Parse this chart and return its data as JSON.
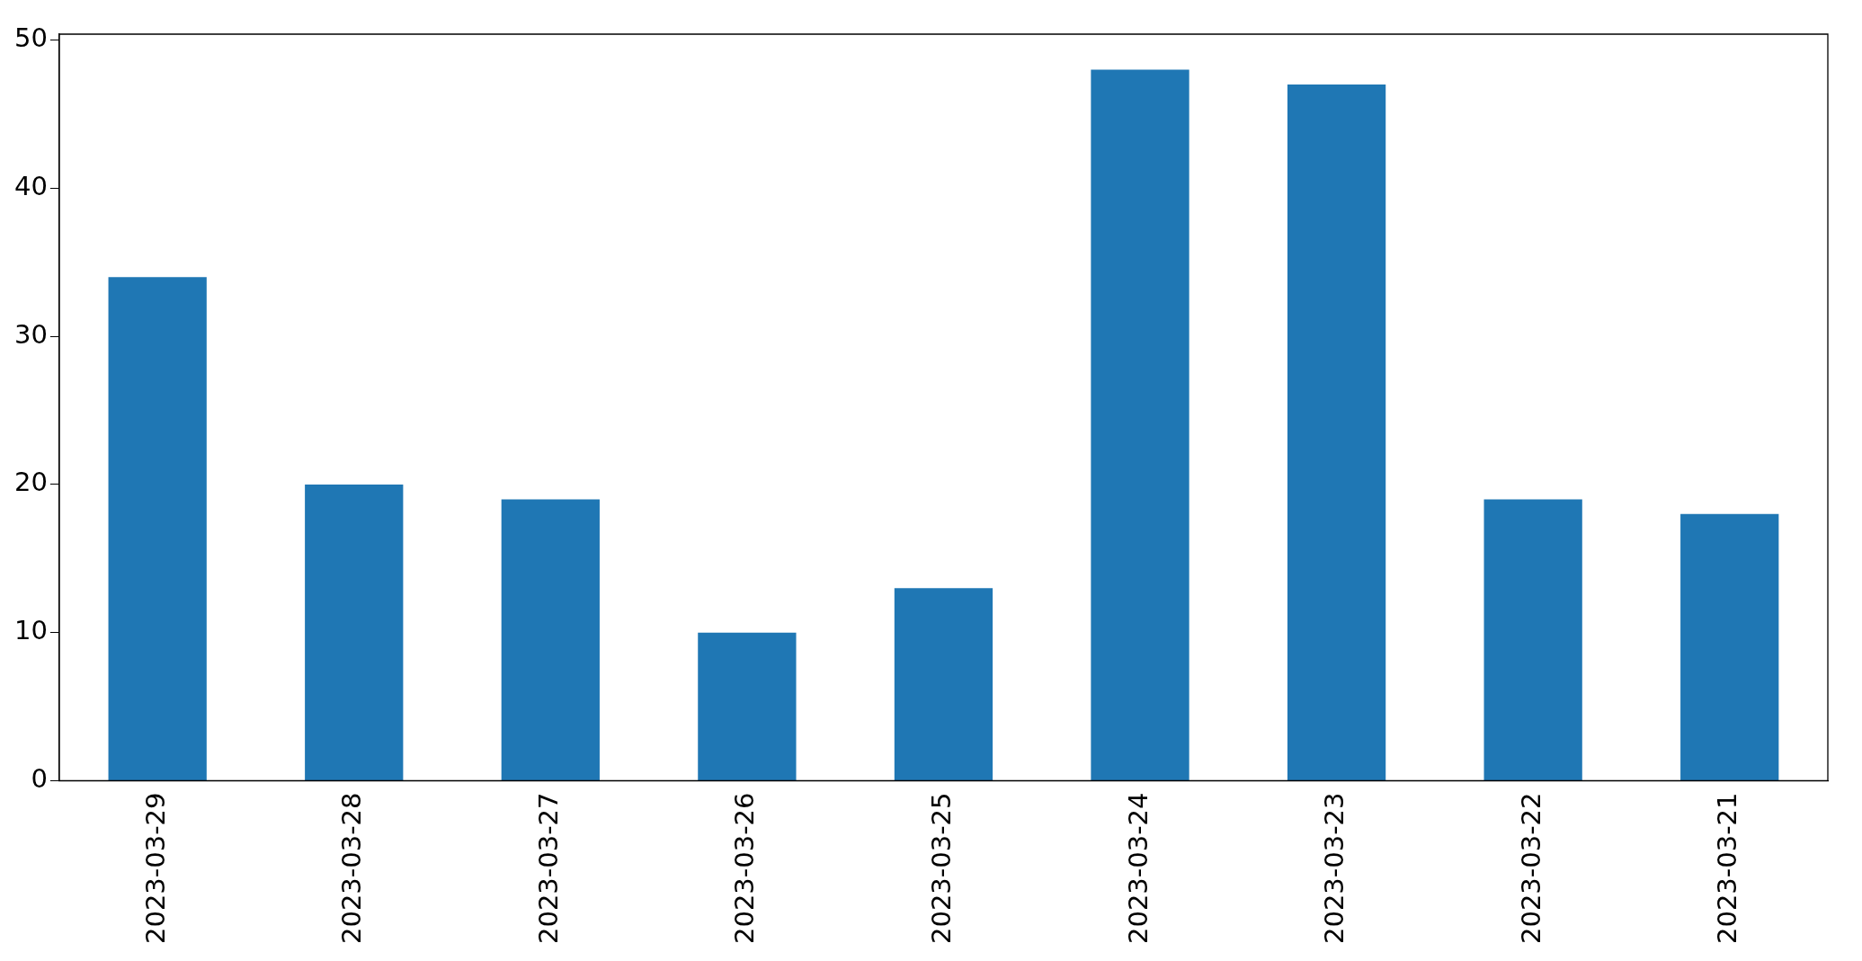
{
  "chart_data": {
    "type": "bar",
    "categories": [
      "2023-03-29",
      "2023-03-28",
      "2023-03-27",
      "2023-03-26",
      "2023-03-25",
      "2023-03-24",
      "2023-03-23",
      "2023-03-22",
      "2023-03-21"
    ],
    "values": [
      34,
      20,
      19,
      10,
      13,
      48,
      47,
      19,
      18
    ],
    "color": "#1f77b4",
    "ylim": [
      0,
      50.4
    ],
    "yticks": [
      0,
      10,
      20,
      30,
      40,
      50
    ],
    "grid": false,
    "legend": false
  }
}
